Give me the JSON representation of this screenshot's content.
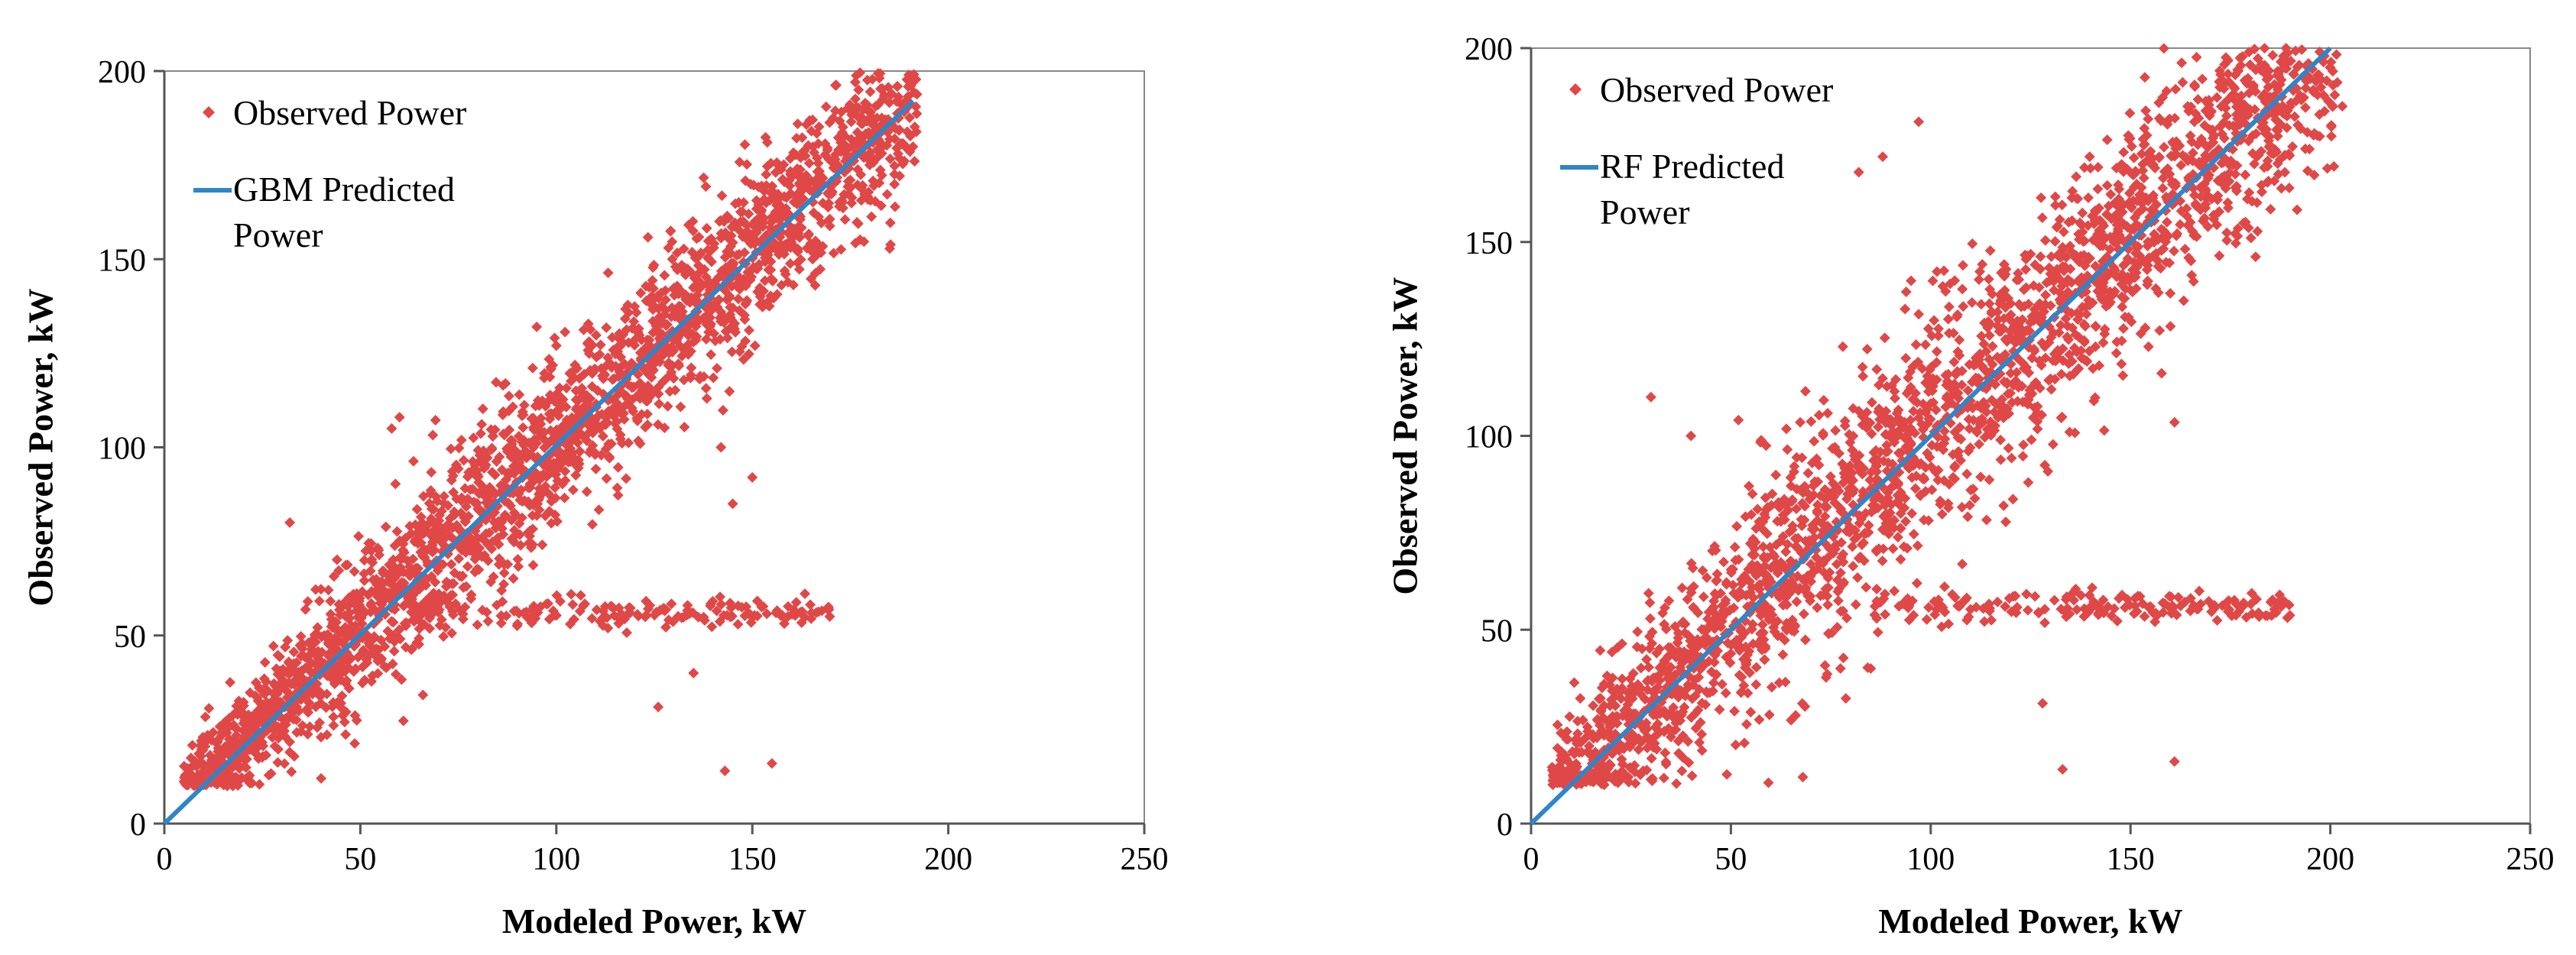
{
  "colors": {
    "observed": "#e04848",
    "predicted": "#2e86c8",
    "axis": "#555555",
    "frame": "#888888"
  },
  "chart_data": [
    {
      "type": "scatter",
      "title": "",
      "xlabel": "Modeled Power, kW",
      "ylabel": "Observed Power,  kW",
      "xlim": [
        0,
        250
      ],
      "ylim": [
        0,
        200
      ],
      "xticks": [
        "0",
        "50",
        "100",
        "150",
        "200",
        "250"
      ],
      "yticks": [
        "0",
        "50",
        "100",
        "150",
        "200"
      ],
      "legend_position": "top-left",
      "series": [
        {
          "name": "Observed Power",
          "kind": "points",
          "cloud": {
            "x_from": 5,
            "x_to": 192,
            "y_floor": 10,
            "y_cap": 200,
            "spread": 11,
            "bias": 2
          },
          "tail": {
            "x_from": 65,
            "x_to": 172,
            "y": 56,
            "spread": 2
          },
          "outliers": [
            [
              126,
              31
            ],
            [
              143,
              14
            ],
            [
              155,
              16
            ],
            [
              60,
              108
            ],
            [
              58,
              105
            ],
            [
              95,
              132
            ],
            [
              100,
              127
            ],
            [
              32,
              80
            ],
            [
              40,
              12
            ],
            [
              135,
              40
            ],
            [
              150,
              92
            ],
            [
              142,
              100
            ],
            [
              145,
              85
            ]
          ]
        },
        {
          "name": "GBM Predicted Power",
          "kind": "line",
          "x": [
            0,
            191
          ],
          "y": [
            0,
            192
          ]
        }
      ],
      "legend": [
        "Observed Power",
        "GBM Predicted",
        "Power"
      ]
    },
    {
      "type": "scatter",
      "title": "",
      "xlabel": "Modeled Power, kW",
      "ylabel": "Observed Power,  kW",
      "xlim": [
        0,
        250
      ],
      "ylim": [
        0,
        200
      ],
      "xticks": [
        "0",
        "50",
        "100",
        "150",
        "200",
        "250"
      ],
      "yticks": [
        "0",
        "50",
        "100",
        "150",
        "200"
      ],
      "legend_position": "top-left",
      "series": [
        {
          "name": "Observed Power",
          "kind": "points",
          "cloud": {
            "x_from": 5,
            "x_to": 202,
            "y_floor": 10,
            "y_cap": 200,
            "spread": 15,
            "bias": 2
          },
          "tail": {
            "x_from": 85,
            "x_to": 190,
            "y": 56,
            "spread": 2
          },
          "outliers": [
            [
              82,
              168
            ],
            [
              97,
              181
            ],
            [
              88,
              172
            ],
            [
              128,
              31
            ],
            [
              133,
              14
            ],
            [
              161,
              16
            ],
            [
              68,
              12
            ],
            [
              30,
              110
            ],
            [
              40,
              100
            ],
            [
              85,
              40
            ],
            [
              200,
              195
            ],
            [
              203,
              185
            ],
            [
              196,
              178
            ]
          ]
        },
        {
          "name": "RF Predicted Power",
          "kind": "line",
          "x": [
            0,
            200
          ],
          "y": [
            0,
            200
          ]
        }
      ],
      "legend": [
        "Observed Power",
        "RF Predicted",
        "Power"
      ]
    }
  ]
}
